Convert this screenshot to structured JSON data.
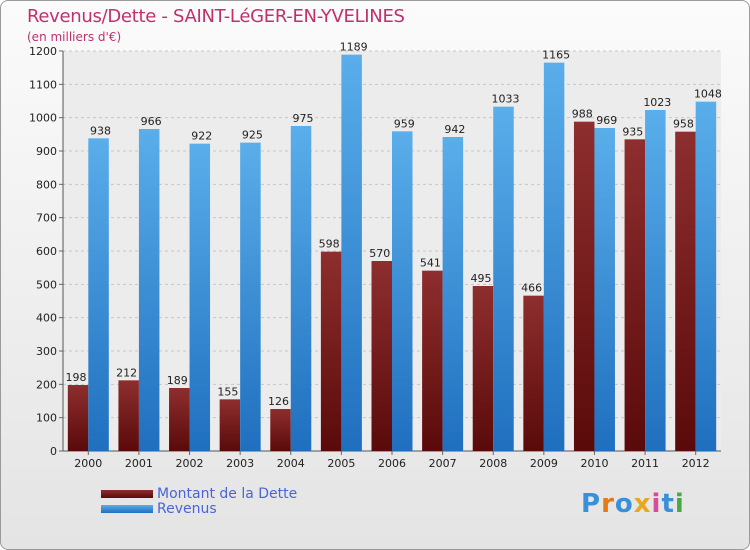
{
  "chart_data": {
    "type": "bar",
    "title": "Revenus/Dette - SAINT-LéGER-EN-YVELINES",
    "subtitle": "(en milliers d'€)",
    "xlabel": "",
    "ylabel": "",
    "ylim": [
      0,
      1200
    ],
    "yticks": [
      0,
      100,
      200,
      300,
      400,
      500,
      600,
      700,
      800,
      900,
      1000,
      1100,
      1200
    ],
    "grid": true,
    "legend_position": "bottom-left",
    "categories": [
      "2000",
      "2001",
      "2002",
      "2003",
      "2004",
      "2005",
      "2006",
      "2007",
      "2008",
      "2009",
      "2010",
      "2011",
      "2012"
    ],
    "series": [
      {
        "name": "Montant de la Dette",
        "color": "#7a1a1a",
        "color_light": "#8e2e2e",
        "color_dark": "#5a0a0a",
        "values": [
          198,
          212,
          189,
          155,
          126,
          598,
          570,
          541,
          495,
          466,
          988,
          935,
          958
        ]
      },
      {
        "name": "Revenus",
        "color": "#3d8fd8",
        "color_light": "#5aaeea",
        "color_dark": "#1f6fbf",
        "values": [
          938,
          966,
          922,
          925,
          975,
          1189,
          959,
          942,
          1033,
          1165,
          969,
          1023,
          1048
        ]
      }
    ]
  },
  "logo": {
    "text": "Proxiti",
    "colors": [
      "#3a90d8",
      "#e07a1a",
      "#3a90d8",
      "#e6a820",
      "#d84a9a",
      "#3a90d8",
      "#4aa84a"
    ]
  }
}
